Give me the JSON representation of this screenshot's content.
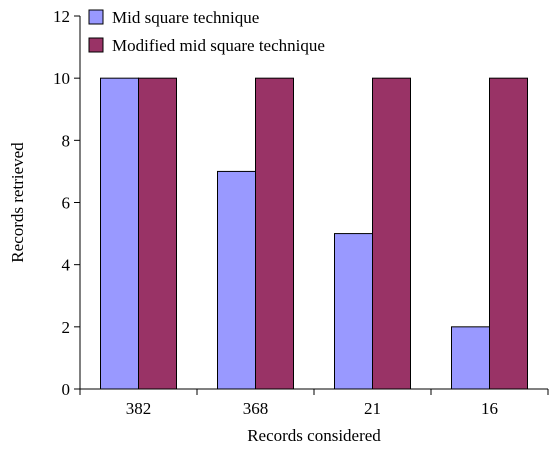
{
  "chart_data": {
    "type": "bar",
    "title": "",
    "xlabel": "Records considered",
    "ylabel": "Records retrieved",
    "categories": [
      "382",
      "368",
      "21",
      "16"
    ],
    "ylim": [
      0,
      12
    ],
    "yticks": [
      0,
      2,
      4,
      6,
      8,
      10,
      12
    ],
    "grid": false,
    "legend_position": "top-left",
    "series": [
      {
        "name": "Mid square technique",
        "values": [
          10,
          7,
          5,
          2
        ],
        "color": "#9999ff"
      },
      {
        "name": "Modified mid square technique",
        "values": [
          10,
          10,
          10,
          10
        ],
        "color": "#993366"
      }
    ]
  }
}
